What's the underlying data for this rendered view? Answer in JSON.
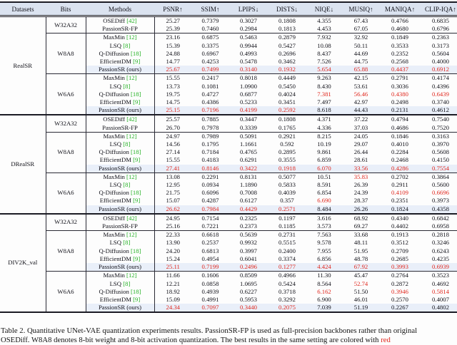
{
  "colors": {
    "best_red": "#e0261c",
    "citation_green": "#23b123",
    "highlight_row_bg": "#e9eff9",
    "header_bg": "#dbe3f0",
    "rule": "#1b1b24"
  },
  "table": {
    "columns": [
      "Datasets",
      "Bits",
      "Methods",
      "PSNR↑",
      "SSIM↑",
      "LPIPS↓",
      "DISTS↓",
      "NIQE↓",
      "MUSIQ↑",
      "MANIQA↑",
      "CLIP-IQA↑"
    ],
    "groups": [
      {
        "dataset": "RealSR",
        "sections": [
          {
            "bits": "W32A32",
            "rows": [
              {
                "method": "OSEDiff",
                "cite": "[42]",
                "values": [
                  "25.27",
                  "0.7379",
                  "0.3027",
                  "0.1808",
                  "4.355",
                  "67.43",
                  "0.4766",
                  "0.6835"
                ],
                "red": [],
                "highlight": false
              },
              {
                "method": "PassionSR-FP",
                "cite": "",
                "values": [
                  "25.39",
                  "0.7460",
                  "0.2984",
                  "0.1813",
                  "4.453",
                  "67.05",
                  "0.4680",
                  "0.6796"
                ],
                "red": [],
                "highlight": false
              }
            ]
          },
          {
            "bits": "W8A8",
            "rows": [
              {
                "method": "MaxMin",
                "cite": "[12]",
                "values": [
                  "23.16",
                  "0.6875",
                  "0.5463",
                  "0.2879",
                  "7.932",
                  "32.92",
                  "0.1849",
                  "0.2363"
                ],
                "red": [],
                "highlight": false
              },
              {
                "method": "LSQ",
                "cite": "[8]",
                "values": [
                  "15.39",
                  "0.3375",
                  "0.9944",
                  "0.5427",
                  "10.08",
                  "50.11",
                  "0.3533",
                  "0.3173"
                ],
                "red": [],
                "highlight": false
              },
              {
                "method": "Q-Diffusion",
                "cite": "[18]",
                "values": [
                  "24.88",
                  "0.6967",
                  "0.4993",
                  "0.2696",
                  "8.437",
                  "44.69",
                  "0.2352",
                  "0.5604"
                ],
                "red": [],
                "highlight": false
              },
              {
                "method": "EfficientDM",
                "cite": "[9]",
                "values": [
                  "14.77",
                  "0.4253",
                  "0.5478",
                  "0.3462",
                  "7.526",
                  "44.75",
                  "0.2568",
                  "0.4000"
                ],
                "red": [],
                "highlight": false
              },
              {
                "method": "PassionSR (ours)",
                "cite": "",
                "values": [
                  "25.67",
                  "0.7499",
                  "0.3140",
                  "0.1932",
                  "5.654",
                  "65.88",
                  "0.4437",
                  "0.6912"
                ],
                "red": [
                  0,
                  1,
                  2,
                  3,
                  4,
                  5,
                  6,
                  7
                ],
                "highlight": true
              }
            ]
          },
          {
            "bits": "W6A6",
            "rows": [
              {
                "method": "MaxMin",
                "cite": "[12]",
                "values": [
                  "15.55",
                  "0.2417",
                  "0.8018",
                  "0.4449",
                  "9.263",
                  "42.15",
                  "0.2791",
                  "0.4174"
                ],
                "red": [],
                "highlight": false
              },
              {
                "method": "LSQ",
                "cite": "[8]",
                "values": [
                  "13.73",
                  "0.1081",
                  "1.0900",
                  "0.5450",
                  "8.430",
                  "53.61",
                  "0.3036",
                  "0.4396"
                ],
                "red": [],
                "highlight": false
              },
              {
                "method": "Q-Diffusion",
                "cite": "[18]",
                "values": [
                  "19.75",
                  "0.4727",
                  "0.6877",
                  "0.4024",
                  "7.381",
                  "56.46",
                  "0.4380",
                  "0.6439"
                ],
                "red": [
                  4,
                  5,
                  6,
                  7
                ],
                "highlight": false
              },
              {
                "method": "EfficientDM",
                "cite": "[9]",
                "values": [
                  "14.75",
                  "0.4386",
                  "0.5233",
                  "0.3451",
                  "7.497",
                  "42.97",
                  "0.2498",
                  "0.3740"
                ],
                "red": [],
                "highlight": false
              },
              {
                "method": "PassionSR (ours)",
                "cite": "",
                "values": [
                  "25.15",
                  "0.7196",
                  "0.4199",
                  "0.2592",
                  "8.618",
                  "44.43",
                  "0.2131",
                  "0.4612"
                ],
                "red": [
                  0,
                  1,
                  2,
                  3
                ],
                "highlight": true
              }
            ]
          }
        ]
      },
      {
        "dataset": "DRealSR",
        "sections": [
          {
            "bits": "W32A32",
            "rows": [
              {
                "method": "OSEDiff",
                "cite": "[42]",
                "values": [
                  "25.57",
                  "0.7885",
                  "0.3447",
                  "0.1808",
                  "4.371",
                  "37.22",
                  "0.4794",
                  "0.7540"
                ],
                "red": [],
                "highlight": false
              },
              {
                "method": "PassionSR-FP",
                "cite": "",
                "values": [
                  "26.70",
                  "0.7978",
                  "0.3339",
                  "0.1765",
                  "4.336",
                  "37.03",
                  "0.4686",
                  "0.7520"
                ],
                "red": [],
                "highlight": false
              }
            ]
          },
          {
            "bits": "W8A8",
            "rows": [
              {
                "method": "MaxMin",
                "cite": "[12]",
                "values": [
                  "24.97",
                  "0.7989",
                  "0.5091",
                  "0.2921",
                  "8.215",
                  "24.05",
                  "0.1846",
                  "0.3163"
                ],
                "red": [],
                "highlight": false
              },
              {
                "method": "LSQ",
                "cite": "[8]",
                "values": [
                  "14.56",
                  "0.1795",
                  "1.1661",
                  "0.592",
                  "10.19",
                  "29.07",
                  "0.4010",
                  "0.3970"
                ],
                "red": [],
                "highlight": false
              },
              {
                "method": "Q-Diffusion",
                "cite": "[18]",
                "values": [
                  "27.14",
                  "0.7184",
                  "0.4765",
                  "0.2895",
                  "9.861",
                  "26.44",
                  "0.2284",
                  "0.5608"
                ],
                "red": [],
                "highlight": false
              },
              {
                "method": "EfficientDM",
                "cite": "[9]",
                "values": [
                  "15.55",
                  "0.4183",
                  "0.6291",
                  "0.3555",
                  "6.859",
                  "28.61",
                  "0.2468",
                  "0.4150"
                ],
                "red": [],
                "highlight": false
              },
              {
                "method": "PassionSR (ours)",
                "cite": "",
                "values": [
                  "27.41",
                  "0.8146",
                  "0.3422",
                  "0.1918",
                  "6.070",
                  "33.56",
                  "0.4286",
                  "0.7554"
                ],
                "red": [
                  0,
                  1,
                  2,
                  3,
                  4,
                  5,
                  6,
                  7
                ],
                "highlight": true
              }
            ]
          },
          {
            "bits": "W6A6",
            "rows": [
              {
                "method": "MaxMin",
                "cite": "[12]",
                "values": [
                  "13.08",
                  "0.2291",
                  "0.8131",
                  "0.5077",
                  "10.51",
                  "35.83",
                  "0.2702",
                  "0.3864"
                ],
                "red": [
                  5
                ],
                "highlight": false
              },
              {
                "method": "LSQ",
                "cite": "[8]",
                "values": [
                  "12.95",
                  "0.0934",
                  "1.1890",
                  "0.5833",
                  "8.591",
                  "26.39",
                  "0.2911",
                  "0.5600"
                ],
                "red": [],
                "highlight": false
              },
              {
                "method": "Q-Diffusion",
                "cite": "[18]",
                "values": [
                  "21.75",
                  "0.6096",
                  "0.7008",
                  "0.4039",
                  "6.854",
                  "24.39",
                  "0.4109",
                  "0.6696"
                ],
                "red": [
                  6,
                  7
                ],
                "highlight": false
              },
              {
                "method": "EfficientDM",
                "cite": "[9]",
                "values": [
                  "15.07",
                  "0.4287",
                  "0.6127",
                  "0.357",
                  "6.690",
                  "28.37",
                  "0.2351",
                  "0.3973"
                ],
                "red": [
                  4
                ],
                "highlight": false
              },
              {
                "method": "PassionSR (ours)",
                "cite": "",
                "values": [
                  "26.62",
                  "0.7984",
                  "0.4429",
                  "0.2571",
                  "8.484",
                  "26.26",
                  "0.1824",
                  "0.4358"
                ],
                "red": [
                  0,
                  1,
                  2,
                  3
                ],
                "highlight": true
              }
            ]
          }
        ]
      },
      {
        "dataset": "DIV2K_val",
        "sections": [
          {
            "bits": "W32A32",
            "rows": [
              {
                "method": "OSEDiff",
                "cite": "[42]",
                "values": [
                  "24.95",
                  "0.7154",
                  "0.2325",
                  "0.1197",
                  "3.616",
                  "68.92",
                  "0.4340",
                  "0.6842"
                ],
                "red": [],
                "highlight": false
              },
              {
                "method": "PassionSR-FP",
                "cite": "",
                "values": [
                  "25.16",
                  "0.7221",
                  "0.2373",
                  "0.1185",
                  "3.573",
                  "69.27",
                  "0.4402",
                  "0.6958"
                ],
                "red": [],
                "highlight": false
              }
            ]
          },
          {
            "bits": "W8A8",
            "rows": [
              {
                "method": "MaxMin",
                "cite": "[12]",
                "values": [
                  "22.33",
                  "0.6618",
                  "0.5639",
                  "0.2731",
                  "7.563",
                  "33.68",
                  "0.1913",
                  "0.2818"
                ],
                "red": [],
                "highlight": false
              },
              {
                "method": "LSQ",
                "cite": "[8]",
                "values": [
                  "13.90",
                  "0.2537",
                  "0.9932",
                  "0.5515",
                  "9.578",
                  "48.11",
                  "0.3512",
                  "0.3246"
                ],
                "red": [],
                "highlight": false
              },
              {
                "method": "Q-Diffusion",
                "cite": "[18]",
                "values": [
                  "24.20",
                  "0.6813",
                  "0.3997",
                  "0.2400",
                  "7.955",
                  "51.95",
                  "0.2709",
                  "0.6243"
                ],
                "red": [],
                "highlight": false
              },
              {
                "method": "EfficientDM",
                "cite": "[9]",
                "values": [
                  "15.24",
                  "0.4954",
                  "0.6041",
                  "0.3374",
                  "6.856",
                  "48.78",
                  "0.2685",
                  "0.4235"
                ],
                "red": [],
                "highlight": false
              },
              {
                "method": "PassionSR (ours)",
                "cite": "",
                "values": [
                  "25.11",
                  "0.7199",
                  "0.2496",
                  "0.1277",
                  "4.424",
                  "67.92",
                  "0.3993",
                  "0.6939"
                ],
                "red": [
                  0,
                  1,
                  2,
                  3,
                  4,
                  5,
                  6,
                  7
                ],
                "highlight": true
              }
            ]
          },
          {
            "bits": "W6A6",
            "rows": [
              {
                "method": "MaxMin",
                "cite": "[12]",
                "values": [
                  "11.66",
                  "0.1606",
                  "0.8509",
                  "0.4966",
                  "11.30",
                  "45.47",
                  "0.2764",
                  "0.3523"
                ],
                "red": [],
                "highlight": false
              },
              {
                "method": "LSQ",
                "cite": "[8]",
                "values": [
                  "12.21",
                  "0.0858",
                  "1.0695",
                  "0.5424",
                  "8.564",
                  "52.74",
                  "0.2872",
                  "0.4692"
                ],
                "red": [
                  5
                ],
                "highlight": false
              },
              {
                "method": "Q-Diffusion",
                "cite": "[18]",
                "values": [
                  "18.92",
                  "0.4939",
                  "0.6227",
                  "0.3718",
                  "6.162",
                  "51.50",
                  "0.3946",
                  "0.5814"
                ],
                "red": [
                  4,
                  6,
                  7
                ],
                "highlight": false
              },
              {
                "method": "EfficientDM",
                "cite": "[9]",
                "values": [
                  "15.09",
                  "0.4991",
                  "0.5953",
                  "0.3292",
                  "6.900",
                  "46.01",
                  "0.2570",
                  "0.4007"
                ],
                "red": [],
                "highlight": false
              },
              {
                "method": "PassionSR (ours)",
                "cite": "",
                "values": [
                  "24.34",
                  "0.7097",
                  "0.3440",
                  "0.2075",
                  "7.039",
                  "51.19",
                  "0.2267",
                  "0.4802"
                ],
                "red": [
                  0,
                  1,
                  2,
                  3
                ],
                "highlight": true
              }
            ]
          }
        ]
      }
    ]
  },
  "caption": {
    "line1": "Table 2. Quantitative UNet-VAE quantization experiments results. PassionSR-FP is used as full-precision backbones rather than original",
    "line2_prefix": "OSEDiff. W8A8 denotes 8-bit weight and 8-bit activation quantization. The best results in the same setting are colored with ",
    "line2_red_word": "red"
  }
}
